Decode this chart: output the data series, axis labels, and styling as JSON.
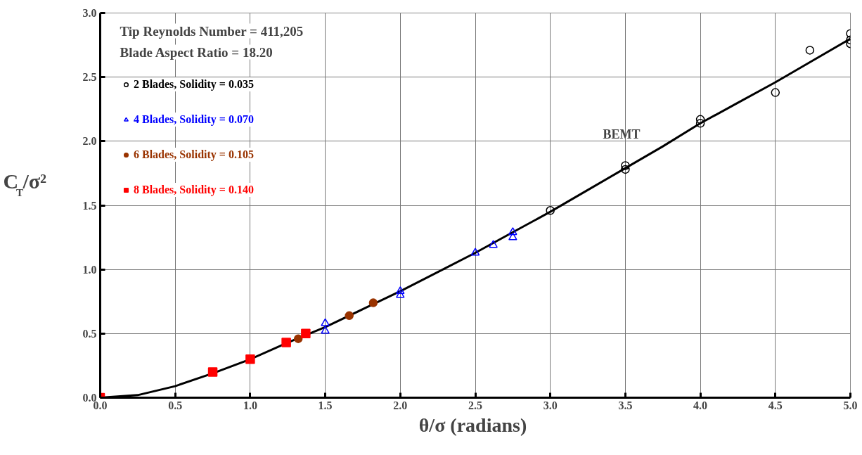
{
  "chart_data": {
    "type": "scatter",
    "xlabel": "θ/σ  (radians)",
    "ylabel": "C$_{T}$/σ²",
    "xlim": [
      0,
      5
    ],
    "xticks": [
      {
        "value": 0,
        "label": "0.0"
      },
      {
        "value": 0.5,
        "label": "0.5"
      },
      {
        "value": 1,
        "label": "1.0"
      },
      {
        "value": 1.5,
        "label": "1.5"
      },
      {
        "value": 2,
        "label": "2.0"
      },
      {
        "value": 2.5,
        "label": "2.5"
      },
      {
        "value": 3,
        "label": "3.0"
      },
      {
        "value": 3.5,
        "label": "3.5"
      },
      {
        "value": 4,
        "label": "4.0"
      },
      {
        "value": 4.5,
        "label": "4.5"
      },
      {
        "value": 5,
        "label": "5.0"
      }
    ],
    "ylim": [
      0,
      3
    ],
    "yticks": [
      {
        "value": 0,
        "label": "0.0"
      },
      {
        "value": 0.5,
        "label": "0.5"
      },
      {
        "value": 1,
        "label": "1.0"
      },
      {
        "value": 1.5,
        "label": "1.5"
      },
      {
        "value": 2,
        "label": "2.0"
      },
      {
        "value": 2.5,
        "label": "2.5"
      },
      {
        "value": 3,
        "label": "3.0"
      }
    ],
    "grid": true,
    "legend": "top left",
    "annotations": [
      "Tip Reynolds Number = 411,205",
      "Blade Aspect Ratio = 18.20",
      "BEMT"
    ],
    "series": [
      {
        "type": "line",
        "color": "#000000",
        "marker": "none",
        "line_style": "solid",
        "x": [
          0,
          0.25,
          0.5,
          0.75,
          1.0,
          1.25,
          1.5,
          1.75,
          2.0,
          2.25,
          2.5,
          2.75,
          3.0,
          3.25,
          3.5,
          3.75,
          4.0,
          4.25,
          4.5,
          4.75,
          5.0
        ],
        "values": [
          0,
          0.02,
          0.09,
          0.19,
          0.3,
          0.43,
          0.55,
          0.69,
          0.83,
          0.98,
          1.13,
          1.29,
          1.45,
          1.62,
          1.79,
          1.96,
          2.14,
          2.3,
          2.46,
          2.63,
          2.8
        ]
      },
      {
        "name": "2 Blades, Solidity = 0.035",
        "color": "#000000",
        "marker": "circle_open",
        "x": [
          3.0,
          3.5,
          3.5,
          4.0,
          4.0,
          4.5,
          4.73,
          5.0,
          5.0,
          5.0
        ],
        "values": [
          1.46,
          1.81,
          1.78,
          2.17,
          2.14,
          2.38,
          2.71,
          2.84,
          2.79,
          2.76
        ]
      },
      {
        "name": "4 Blades, Solidity = 0.070",
        "color": "#0000ff",
        "marker": "triangle_open",
        "x": [
          1.5,
          1.5,
          2.0,
          2.0,
          2.5,
          2.62,
          2.75,
          2.75
        ],
        "values": [
          0.58,
          0.52,
          0.83,
          0.8,
          1.13,
          1.19,
          1.29,
          1.25
        ]
      },
      {
        "name": "6 Blades, Solidity = 0.105",
        "color": "#993300",
        "marker": "circle",
        "x": [
          1.32,
          1.66,
          1.82
        ],
        "values": [
          0.46,
          0.64,
          0.74
        ]
      },
      {
        "name": "8 Blades, Solidity = 0.140",
        "color": "#ff0000",
        "marker": "square",
        "x": [
          0,
          0.75,
          1.0,
          1.24,
          1.37
        ],
        "values": [
          0,
          0.2,
          0.3,
          0.43,
          0.5
        ]
      }
    ]
  }
}
